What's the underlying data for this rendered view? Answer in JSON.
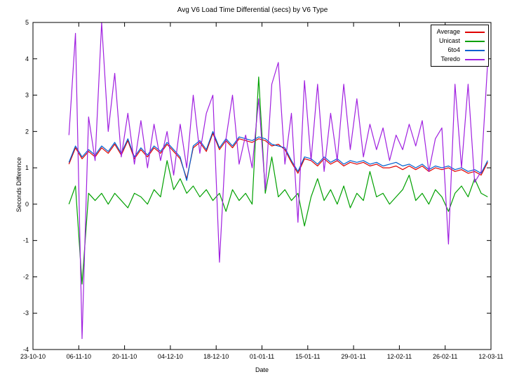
{
  "page": {
    "background": "#ffffff"
  },
  "chart_data": {
    "type": "line",
    "title": "Avg V6 Load Time Differential (secs) by V6 Type",
    "xlabel": "Date",
    "ylabel": "Seconds Difference",
    "ylim": [
      -4,
      5
    ],
    "y_ticks": [
      5,
      4,
      3,
      2,
      1,
      0,
      -1,
      -2,
      -3,
      -4
    ],
    "x_range_days": [
      0,
      140
    ],
    "x_tick_days": [
      0,
      14,
      28,
      42,
      56,
      70,
      84,
      98,
      112,
      126,
      140
    ],
    "x_tick_labels": [
      "23-10-10",
      "06-11-10",
      "20-11-10",
      "04-12-10",
      "18-12-10",
      "01-01-11",
      "15-01-11",
      "29-01-11",
      "12-02-11",
      "26-02-11",
      "12-03-11"
    ],
    "grid": false,
    "legend_position": "top-right",
    "series": [
      {
        "name": "Average",
        "color": "#e00000",
        "start_day": 11,
        "day_step": 2,
        "values": [
          1.1,
          1.55,
          1.25,
          1.45,
          1.3,
          1.55,
          1.4,
          1.65,
          1.35,
          1.75,
          1.25,
          1.5,
          1.3,
          1.55,
          1.4,
          1.65,
          1.45,
          1.25,
          0.7,
          1.55,
          1.7,
          1.45,
          1.95,
          1.5,
          1.75,
          1.55,
          1.8,
          1.75,
          1.7,
          1.8,
          1.75,
          1.6,
          1.65,
          1.5,
          1.15,
          0.85,
          1.25,
          1.2,
          1.05,
          1.25,
          1.1,
          1.2,
          1.05,
          1.15,
          1.1,
          1.15,
          1.05,
          1.1,
          1.0,
          1.0,
          1.05,
          0.95,
          1.05,
          0.95,
          1.05,
          0.9,
          1.0,
          0.95,
          1.0,
          0.9,
          0.95,
          0.85,
          0.9,
          0.8,
          1.15
        ]
      },
      {
        "name": "Unicast",
        "color": "#00a000",
        "start_day": 11,
        "day_step": 2,
        "values": [
          0.0,
          0.5,
          -2.2,
          0.3,
          0.1,
          0.3,
          0.0,
          0.3,
          0.1,
          -0.1,
          0.3,
          0.2,
          0.0,
          0.4,
          0.2,
          1.2,
          0.4,
          0.7,
          0.3,
          0.5,
          0.2,
          0.4,
          0.1,
          0.3,
          -0.2,
          0.4,
          0.1,
          0.3,
          0.0,
          3.5,
          0.3,
          1.3,
          0.2,
          0.4,
          0.1,
          0.3,
          -0.6,
          0.2,
          0.7,
          0.1,
          0.4,
          0.0,
          0.5,
          -0.1,
          0.3,
          0.1,
          0.9,
          0.2,
          0.3,
          0.0,
          0.2,
          0.4,
          0.8,
          0.1,
          0.3,
          0.0,
          0.4,
          0.2,
          -0.2,
          0.3,
          0.5,
          0.2,
          0.7,
          0.3,
          0.2
        ]
      },
      {
        "name": "6to4",
        "color": "#0060d0",
        "start_day": 11,
        "day_step": 2,
        "values": [
          1.15,
          1.6,
          1.3,
          1.5,
          1.35,
          1.6,
          1.45,
          1.7,
          1.4,
          1.8,
          1.3,
          1.55,
          1.35,
          1.6,
          1.45,
          1.7,
          1.5,
          1.3,
          0.65,
          1.6,
          1.75,
          1.5,
          2.0,
          1.55,
          1.8,
          1.6,
          1.85,
          1.8,
          1.75,
          1.85,
          1.8,
          1.65,
          1.6,
          1.55,
          1.2,
          0.9,
          1.3,
          1.25,
          1.1,
          1.3,
          1.15,
          1.25,
          1.1,
          1.2,
          1.15,
          1.2,
          1.1,
          1.15,
          1.05,
          1.1,
          1.15,
          1.05,
          1.1,
          1.0,
          1.1,
          0.95,
          1.05,
          1.0,
          1.05,
          0.95,
          1.0,
          0.9,
          0.95,
          0.85,
          1.2
        ]
      },
      {
        "name": "Teredo",
        "color": "#a020e0",
        "start_day": 11,
        "day_step": 2,
        "values": [
          1.9,
          4.7,
          -3.7,
          2.4,
          1.2,
          5.0,
          2.0,
          3.6,
          1.3,
          2.5,
          1.1,
          2.3,
          1.0,
          2.2,
          1.2,
          2.0,
          0.8,
          2.2,
          1.0,
          3.0,
          1.4,
          2.5,
          3.0,
          -1.6,
          1.8,
          3.0,
          1.1,
          1.9,
          1.0,
          2.9,
          0.4,
          3.3,
          3.9,
          1.1,
          2.5,
          -0.5,
          3.4,
          1.2,
          3.3,
          0.9,
          2.5,
          1.2,
          3.3,
          1.5,
          2.9,
          1.3,
          2.2,
          1.5,
          2.1,
          1.2,
          1.9,
          1.5,
          2.2,
          1.6,
          2.3,
          0.9,
          1.8,
          2.1,
          -1.1,
          3.3,
          1.0,
          3.3,
          0.6,
          0.9,
          3.9
        ]
      }
    ]
  }
}
